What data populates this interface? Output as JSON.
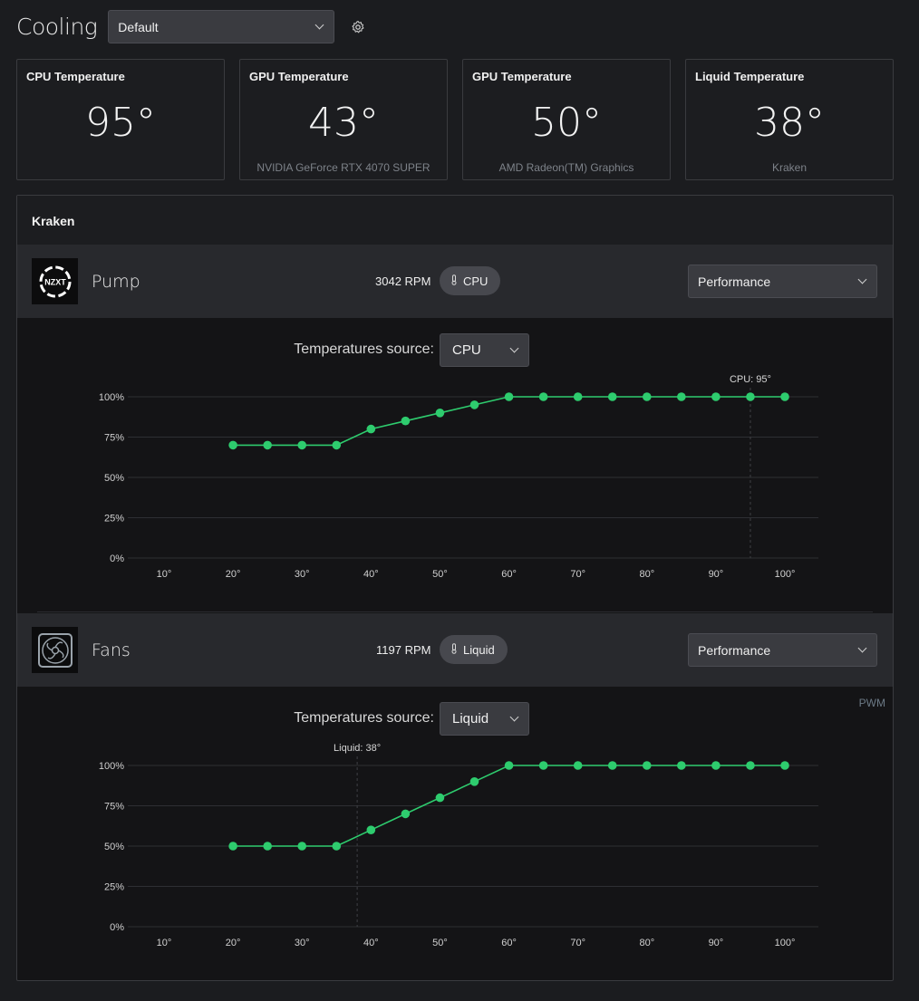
{
  "header": {
    "title": "Cooling",
    "profile": "Default",
    "settings_icon": "gear-icon"
  },
  "cards": [
    {
      "title": "CPU Temperature",
      "value": "95°",
      "sub": ""
    },
    {
      "title": "GPU Temperature",
      "value": "43°",
      "sub": "NVIDIA GeForce RTX 4070 SUPER"
    },
    {
      "title": "GPU Temperature",
      "value": "50°",
      "sub": "AMD Radeon(TM) Graphics"
    },
    {
      "title": "Liquid Temperature",
      "value": "38°",
      "sub": "Kraken"
    }
  ],
  "panel": {
    "title": "Kraken",
    "pump": {
      "name": "Pump",
      "rpm": "3042 RPM",
      "source_pill": "CPU",
      "mode": "Performance",
      "source_label": "Temperatures source:",
      "source_value": "CPU"
    },
    "fans": {
      "name": "Fans",
      "rpm": "1197 RPM",
      "source_pill": "Liquid",
      "mode": "Performance",
      "source_label": "Temperatures source:",
      "source_value": "Liquid",
      "pwm_label": "PWM"
    }
  },
  "colors": {
    "accent": "#2ecc6e",
    "grid": "#2e2f33"
  },
  "chart_data": [
    {
      "type": "line",
      "x_ticks": [
        "10°",
        "20°",
        "30°",
        "40°",
        "50°",
        "60°",
        "70°",
        "80°",
        "90°",
        "100°"
      ],
      "y_ticks": [
        "100%",
        "75%",
        "50%",
        "25%",
        "0%"
      ],
      "xlim": [
        10,
        100
      ],
      "ylim": [
        0,
        100
      ],
      "x": [
        20,
        25,
        30,
        35,
        40,
        45,
        50,
        55,
        60,
        65,
        70,
        75,
        80,
        85,
        90,
        95,
        100
      ],
      "y": [
        70,
        70,
        70,
        70,
        80,
        85,
        90,
        95,
        100,
        100,
        100,
        100,
        100,
        100,
        100,
        100,
        100
      ],
      "marker": {
        "label": "CPU: 95°",
        "x": 95
      }
    },
    {
      "type": "line",
      "x_ticks": [
        "10°",
        "20°",
        "30°",
        "40°",
        "50°",
        "60°",
        "70°",
        "80°",
        "90°",
        "100°"
      ],
      "y_ticks": [
        "100%",
        "75%",
        "50%",
        "25%",
        "0%"
      ],
      "xlim": [
        10,
        100
      ],
      "ylim": [
        0,
        100
      ],
      "x": [
        20,
        25,
        30,
        35,
        40,
        45,
        50,
        55,
        60,
        65,
        70,
        75,
        80,
        85,
        90,
        95,
        100
      ],
      "y": [
        50,
        50,
        50,
        50,
        60,
        70,
        80,
        90,
        100,
        100,
        100,
        100,
        100,
        100,
        100,
        100,
        100
      ],
      "marker": {
        "label": "Liquid: 38°",
        "x": 38
      }
    }
  ]
}
